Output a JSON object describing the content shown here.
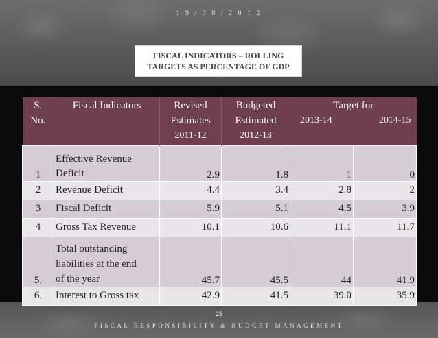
{
  "header": {
    "date": "1 9 / 0 8 / 2 0 1 2"
  },
  "title": {
    "line1": "FISCAL INDICATORS – ROLLING",
    "line2": "TARGETS AS PERCENTAGE OF GDP"
  },
  "table": {
    "headers": {
      "sno_1": "S.",
      "sno_2": "No.",
      "indicator": "Fiscal Indicators",
      "revised_1": "Revised",
      "revised_2": "Estimates",
      "revised_3": "2011-12",
      "budgeted_1": "Budgeted",
      "budgeted_2": "Estimated",
      "budgeted_3": "2012-13",
      "target": "Target for",
      "target_y1": "2013-14",
      "target_y2": "2014-15"
    },
    "rows": [
      {
        "sno": "1",
        "indicator_1": "Effective Revenue",
        "indicator_2": "Deficit",
        "indicator_3": "",
        "revised": "2.9",
        "budgeted": "1.8",
        "t1": "1",
        "t2": "0"
      },
      {
        "sno": "2",
        "indicator_1": "Revenue Deficit",
        "revised": "4.4",
        "budgeted": "3.4",
        "t1": "2.8",
        "t2": "2"
      },
      {
        "sno": "3",
        "indicator_1": "Fiscal Deficit",
        "revised": "5.9",
        "budgeted": "5.1",
        "t1": "4.5",
        "t2": "3.9"
      },
      {
        "sno": "4",
        "indicator_1": "Gross Tax Revenue",
        "revised": "10.1",
        "budgeted": "10.6",
        "t1": "11.1",
        "t2": "11.7"
      },
      {
        "sno": "5.",
        "indicator_1": "Total outstanding",
        "indicator_2": "liabilities at the end",
        "indicator_3": "of the year",
        "revised": "45.7",
        "budgeted": "45.5",
        "t1": "44",
        "t2": "41.9"
      },
      {
        "sno": "6.",
        "indicator_1": "Interest to Gross tax",
        "revised": "42.9",
        "budgeted": "41.5",
        "t1": "39.0",
        "t2": "35.9"
      }
    ]
  },
  "page_number": "25",
  "footer": "FISCAL RESPONSIBILITY & BUDGET MANAGEMENT"
}
